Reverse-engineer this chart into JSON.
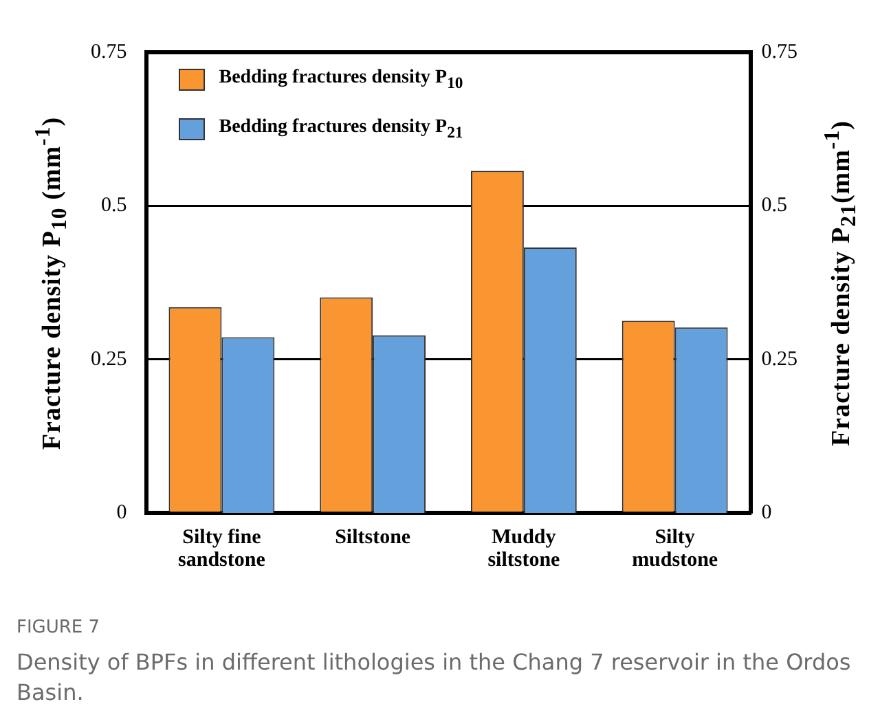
{
  "chart_data": {
    "type": "bar",
    "categories": [
      "Silty fine sandstone",
      "Siltstone",
      "Muddy siltstone",
      "Silty mudstone"
    ],
    "series": [
      {
        "name": "Bedding fractures density P$_{10}$",
        "color": "#fa9632",
        "values": [
          0.335,
          0.351,
          0.557,
          0.313
        ]
      },
      {
        "name": "Bedding fractures density P$_{21}$",
        "color": "#64a0dc",
        "values": [
          0.286,
          0.289,
          0.432,
          0.302
        ],
        "axis": "y2"
      }
    ],
    "ylabel": "Fracture density P$_{10}$ (mm$^{-1}$)",
    "y2label": "Fracture density P$_{21}$(mm$^{-1}$)",
    "ylim": [
      0,
      0.75
    ],
    "yticks": [
      0,
      0.25,
      0.5,
      0.75
    ],
    "y2lim": [
      0,
      0.75
    ],
    "y2ticks": [
      0,
      0.25,
      0.5,
      0.75
    ],
    "grid": "y",
    "legend": "top left",
    "annotations": [
      "FIGURE 7",
      "Density of BPFs in different lithologies in the Chang 7 reservoir in the Ordos Basin."
    ]
  }
}
